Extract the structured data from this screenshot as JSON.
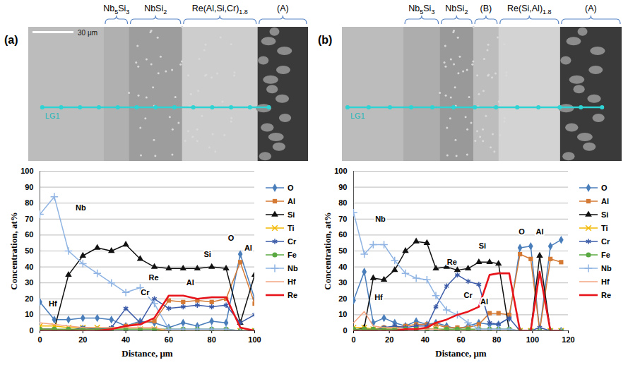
{
  "chart_data": [
    {
      "type": "line",
      "title": "(a)",
      "xlabel": "Distance, μm",
      "ylabel": "Concentration, at%",
      "x": [
        0,
        6.7,
        13.3,
        20,
        26.7,
        33.3,
        40,
        46.7,
        53.3,
        60,
        66.7,
        73.3,
        80,
        86.7,
        93.3,
        100
      ],
      "series": [
        {
          "name": "O",
          "color": "#4a7ebb",
          "marker": "diamond",
          "line_style": "solid",
          "values": [
            18,
            7,
            7,
            8,
            8,
            7,
            3,
            6,
            5,
            2,
            5,
            3,
            6,
            5,
            48,
            20
          ]
        },
        {
          "name": "Al",
          "color": "#d47a35",
          "marker": "square",
          "line_style": "solid",
          "values": [
            0,
            0,
            0,
            1,
            1,
            1,
            3,
            5,
            6,
            19,
            18,
            19,
            18,
            20,
            43,
            17
          ]
        },
        {
          "name": "Si",
          "color": "#111111",
          "marker": "triangle",
          "line_style": "solid",
          "values": [
            1,
            1,
            35,
            47,
            52,
            50,
            54,
            45,
            40,
            39,
            39,
            39,
            40,
            39,
            5,
            35
          ]
        },
        {
          "name": "Ti",
          "color": "#f2b700",
          "marker": "times",
          "line_style": "solid",
          "values": [
            3,
            3,
            2,
            2,
            2,
            1,
            1,
            1,
            1,
            0,
            0,
            0,
            0,
            0,
            0,
            0
          ]
        },
        {
          "name": "Cr",
          "color": "#3b5ba8",
          "marker": "asterisk",
          "line_style": "solid",
          "values": [
            0,
            0,
            0,
            2,
            1,
            2,
            14,
            5,
            20,
            14,
            15,
            16,
            15,
            16,
            5,
            10
          ]
        },
        {
          "name": "Fe",
          "color": "#5aa842",
          "marker": "circle",
          "line_style": "solid",
          "values": [
            1,
            1,
            1,
            1,
            1,
            1,
            1,
            1,
            1,
            1,
            1,
            1,
            1,
            1,
            0,
            0
          ]
        },
        {
          "name": "Nb",
          "color": "#8fb4e3",
          "marker": "plus",
          "line_style": "solid",
          "values": [
            73,
            84,
            50,
            42,
            36,
            30,
            24,
            27,
            17,
            1,
            1,
            1,
            1,
            1,
            0,
            0
          ]
        },
        {
          "name": "Hf",
          "color": "#f4a582",
          "marker": "none",
          "line_style": "solid",
          "values": [
            5,
            4,
            3,
            2,
            2,
            2,
            2,
            2,
            2,
            0,
            0,
            0,
            0,
            0,
            0,
            0
          ]
        },
        {
          "name": "Re",
          "color": "#e8141c",
          "marker": "none",
          "line_style": "thick",
          "values": [
            0,
            0,
            0,
            0,
            0,
            1,
            3,
            4,
            8,
            22,
            22,
            20,
            21,
            21,
            2,
            0
          ]
        }
      ],
      "xlim": [
        0,
        100
      ],
      "xticks": [
        0,
        20,
        40,
        60,
        80,
        100
      ],
      "ylim": [
        0,
        100
      ],
      "yticks": [
        0,
        10,
        20,
        30,
        40,
        50,
        60,
        70,
        80,
        90,
        100
      ],
      "grid": true,
      "legend": "right",
      "annotations": [
        {
          "text": "Nb",
          "x": 19,
          "y": 77
        },
        {
          "text": "Hf",
          "x": 6,
          "y": 17
        },
        {
          "text": "Re",
          "x": 53,
          "y": 33
        },
        {
          "text": "Cr",
          "x": 49,
          "y": 24
        },
        {
          "text": "Si",
          "x": 78,
          "y": 48
        },
        {
          "text": "Al",
          "x": 70,
          "y": 30
        },
        {
          "text": "O",
          "x": 89,
          "y": 58
        },
        {
          "text": "Al",
          "x": 97,
          "y": 52
        }
      ]
    },
    {
      "type": "line",
      "title": "(b)",
      "xlabel": "Distance, μm",
      "ylabel": "Concentration, at%",
      "x": [
        0,
        6,
        11,
        17,
        23,
        29,
        35,
        41,
        46,
        52,
        58,
        64,
        70,
        76,
        81,
        87,
        93,
        99,
        104,
        110,
        116
      ],
      "series": [
        {
          "name": "O",
          "color": "#4a7ebb",
          "marker": "diamond",
          "line_style": "solid",
          "values": [
            19,
            37,
            5,
            8,
            5,
            3,
            6,
            4,
            5,
            3,
            1,
            3,
            5,
            4,
            4,
            8,
            52,
            53,
            0,
            53,
            57
          ]
        },
        {
          "name": "Al",
          "color": "#d47a35",
          "marker": "square",
          "line_style": "solid",
          "values": [
            0,
            0,
            1,
            2,
            2,
            3,
            4,
            4,
            4,
            2,
            2,
            2,
            4,
            11,
            11,
            10,
            48,
            45,
            0,
            45,
            43
          ]
        },
        {
          "name": "Si",
          "color": "#111111",
          "marker": "triangle",
          "line_style": "solid",
          "values": [
            0,
            2,
            33,
            32,
            38,
            50,
            56,
            55,
            39,
            40,
            38,
            39,
            43,
            43,
            42,
            0,
            0,
            0,
            47,
            0,
            0
          ]
        },
        {
          "name": "Ti",
          "color": "#f2b700",
          "marker": "times",
          "line_style": "solid",
          "values": [
            2,
            2,
            1,
            1,
            1,
            1,
            1,
            1,
            1,
            0,
            0,
            0,
            0,
            0,
            0,
            0,
            0,
            0,
            0,
            0,
            0
          ]
        },
        {
          "name": "Cr",
          "color": "#3b5ba8",
          "marker": "asterisk",
          "line_style": "solid",
          "values": [
            0,
            0,
            0,
            2,
            3,
            2,
            3,
            3,
            15,
            28,
            35,
            31,
            29,
            5,
            4,
            8,
            0,
            0,
            2,
            0,
            0
          ]
        },
        {
          "name": "Fe",
          "color": "#5aa842",
          "marker": "circle",
          "line_style": "solid",
          "values": [
            1,
            1,
            1,
            1,
            1,
            1,
            1,
            1,
            1,
            1,
            1,
            1,
            1,
            1,
            1,
            1,
            0,
            0,
            0,
            0,
            0
          ]
        },
        {
          "name": "Nb",
          "color": "#8fb4e3",
          "marker": "plus",
          "line_style": "solid",
          "values": [
            74,
            48,
            54,
            54,
            44,
            36,
            33,
            32,
            22,
            13,
            10,
            5,
            1,
            1,
            1,
            1,
            0,
            0,
            0,
            0,
            0
          ]
        },
        {
          "name": "Hf",
          "color": "#f4a582",
          "marker": "none",
          "line_style": "solid",
          "values": [
            5,
            12,
            3,
            2,
            2,
            1,
            1,
            1,
            1,
            0,
            0,
            0,
            0,
            0,
            0,
            0,
            0,
            0,
            0,
            0,
            0
          ]
        },
        {
          "name": "Re",
          "color": "#e8141c",
          "marker": "none",
          "line_style": "thick",
          "values": [
            0,
            0,
            0,
            0,
            0,
            1,
            1,
            2,
            5,
            7,
            10,
            12,
            15,
            35,
            36,
            36,
            0,
            0,
            37,
            0,
            0
          ]
        }
      ],
      "xlim": [
        0,
        120
      ],
      "xticks": [
        0,
        20,
        40,
        60,
        80,
        100,
        120
      ],
      "ylim": [
        0,
        100
      ],
      "yticks": [
        0,
        10,
        20,
        30,
        40,
        50,
        60,
        70,
        80,
        90,
        100
      ],
      "grid": true,
      "legend": "right",
      "annotations": [
        {
          "text": "Nb",
          "x": 15,
          "y": 70
        },
        {
          "text": "Hf",
          "x": 14,
          "y": 21
        },
        {
          "text": "Re",
          "x": 55,
          "y": 43
        },
        {
          "text": "Si",
          "x": 72,
          "y": 53
        },
        {
          "text": "Cr",
          "x": 64,
          "y": 22
        },
        {
          "text": "Al",
          "x": 73,
          "y": 18
        },
        {
          "text": "O",
          "x": 94,
          "y": 62
        },
        {
          "text": "Al",
          "x": 104,
          "y": 62
        }
      ]
    }
  ],
  "micrographs": [
    {
      "phases": [
        "Nb5Si3",
        "NbSi2",
        "Re(Al,Si,Cr)1.8",
        "(A)"
      ],
      "scale_bar": "30 μm",
      "line_label": "LG1"
    },
    {
      "phases": [
        "Nb5Si3",
        "NbSi2",
        "(B)",
        "Re(Si,Al)1.8",
        "(A)"
      ],
      "line_label": "LG1"
    }
  ]
}
